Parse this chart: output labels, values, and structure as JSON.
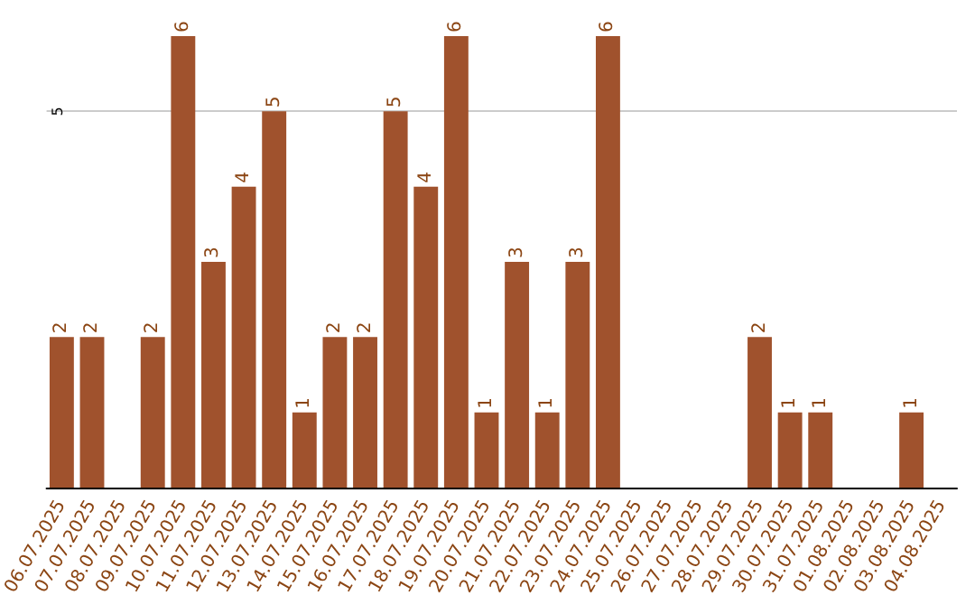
{
  "chart_data": {
    "type": "bar",
    "categories": [
      "06.07.2025",
      "07.07.2025",
      "08.07.2025",
      "09.07.2025",
      "10.07.2025",
      "11.07.2025",
      "12.07.2025",
      "13.07.2025",
      "14.07.2025",
      "15.07.2025",
      "16.07.2025",
      "17.07.2025",
      "18.07.2025",
      "19.07.2025",
      "20.07.2025",
      "21.07.2025",
      "22.07.2025",
      "23.07.2025",
      "24.07.2025",
      "25.07.2025",
      "26.07.2025",
      "27.07.2025",
      "28.07.2025",
      "29.07.2025",
      "30.07.2025",
      "31.07.2025",
      "01.08.2025",
      "02.08.2025",
      "03.08.2025",
      "04.08.2025"
    ],
    "values": [
      2,
      2,
      0,
      2,
      6,
      3,
      4,
      5,
      1,
      2,
      2,
      5,
      4,
      6,
      1,
      3,
      1,
      3,
      6,
      0,
      0,
      0,
      0,
      2,
      1,
      1,
      0,
      0,
      1,
      0
    ],
    "value_labels": [
      "2",
      "2",
      null,
      "2",
      "6",
      "3",
      "4",
      "5",
      "1",
      "2",
      "2",
      "5",
      "4",
      "6",
      "1",
      "3",
      "1",
      "3",
      "6",
      null,
      null,
      null,
      null,
      "2",
      "1",
      "1",
      null,
      null,
      "1",
      null
    ],
    "color": "#a0522d",
    "ylim": [
      0,
      6
    ],
    "yticks": [
      5
    ],
    "grid": "y"
  }
}
